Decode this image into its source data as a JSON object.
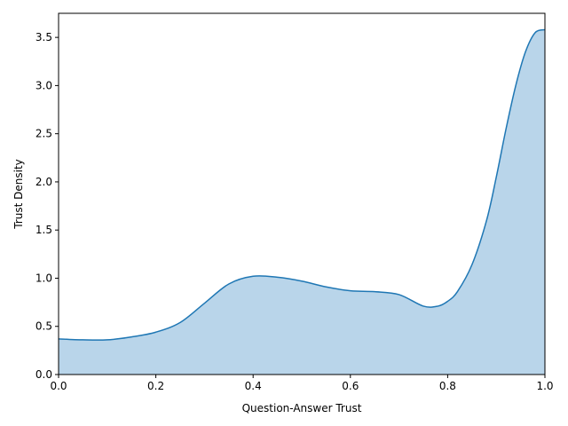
{
  "chart_data": {
    "type": "area",
    "xlabel": "Question-Answer Trust",
    "ylabel": "Trust Density",
    "xlim": [
      0.0,
      1.0
    ],
    "ylim": [
      0.0,
      3.75
    ],
    "xticks": [
      0.0,
      0.2,
      0.4,
      0.6,
      0.8,
      1.0
    ],
    "xtick_labels": [
      "0.0",
      "0.2",
      "0.4",
      "0.6",
      "0.8",
      "1.0"
    ],
    "yticks": [
      0.0,
      0.5,
      1.0,
      1.5,
      2.0,
      2.5,
      3.0,
      3.5
    ],
    "ytick_labels": [
      "0.0",
      "0.5",
      "1.0",
      "1.5",
      "2.0",
      "2.5",
      "3.0",
      "3.5"
    ],
    "grid": false,
    "legend": "none",
    "series": [
      {
        "color": "#1f77b4",
        "fill_color": "#b9d5ea",
        "x": [
          0.0,
          0.05,
          0.1,
          0.15,
          0.2,
          0.25,
          0.3,
          0.35,
          0.4,
          0.45,
          0.5,
          0.55,
          0.6,
          0.65,
          0.7,
          0.75,
          0.78,
          0.8,
          0.82,
          0.85,
          0.88,
          0.9,
          0.92,
          0.94,
          0.96,
          0.98,
          1.0
        ],
        "values": [
          0.37,
          0.36,
          0.36,
          0.39,
          0.44,
          0.54,
          0.74,
          0.94,
          1.02,
          1.01,
          0.97,
          0.91,
          0.87,
          0.86,
          0.83,
          0.71,
          0.71,
          0.76,
          0.86,
          1.14,
          1.6,
          2.05,
          2.55,
          3.0,
          3.35,
          3.55,
          3.58
        ]
      }
    ]
  }
}
